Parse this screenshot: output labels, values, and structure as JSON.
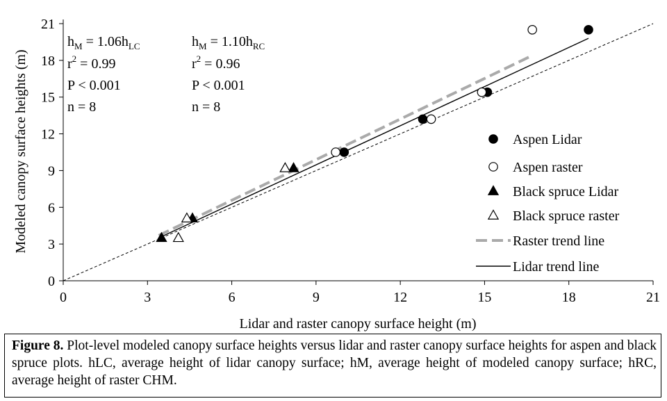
{
  "chart_data": {
    "type": "scatter",
    "xlabel": "Lidar and raster canopy surface height (m)",
    "ylabel": "Modeled canopy surface heights (m)",
    "xlim": [
      0,
      21
    ],
    "ylim": [
      0,
      21
    ],
    "x_ticks": [
      "0",
      "3",
      "6",
      "9",
      "12",
      "15",
      "18",
      "21"
    ],
    "y_ticks": [
      "0",
      "3",
      "6",
      "9",
      "12",
      "15",
      "18",
      "21"
    ],
    "grid": false,
    "legend_position": "bottom-right",
    "series": [
      {
        "name": "Aspen Lidar",
        "marker": "filled-circle",
        "color": "#000000",
        "points": [
          [
            10.0,
            10.5
          ],
          [
            12.8,
            13.2
          ],
          [
            15.1,
            15.4
          ],
          [
            18.7,
            20.5
          ]
        ]
      },
      {
        "name": "Aspen raster",
        "marker": "open-circle",
        "color": "#000000",
        "points": [
          [
            9.7,
            10.5
          ],
          [
            13.1,
            13.2
          ],
          [
            14.9,
            15.4
          ],
          [
            16.7,
            20.5
          ]
        ]
      },
      {
        "name": "Black spruce Lidar",
        "marker": "filled-triangle",
        "color": "#000000",
        "points": [
          [
            3.5,
            3.5
          ],
          [
            4.6,
            5.1
          ],
          [
            8.2,
            9.2
          ]
        ]
      },
      {
        "name": "Black spruce raster",
        "marker": "open-triangle",
        "color": "#000000",
        "points": [
          [
            4.1,
            3.5
          ],
          [
            4.4,
            5.1
          ],
          [
            7.9,
            9.2
          ]
        ]
      }
    ],
    "lines": [
      {
        "name": "Raster trend line",
        "style": "dashed",
        "color": "#aaaaaa",
        "x": [
          3.4,
          16.7
        ],
        "y": [
          3.7,
          18.4
        ]
      },
      {
        "name": "Lidar trend line",
        "style": "solid",
        "color": "#000000",
        "x": [
          3.4,
          18.7
        ],
        "y": [
          3.5,
          19.8
        ]
      },
      {
        "name": "",
        "style": "dotted",
        "color": "#000000",
        "x": [
          0,
          21
        ],
        "y": [
          0,
          21
        ]
      }
    ],
    "annotations": [
      {
        "lines": [
          [
            "h",
            "M",
            " = 1.06h",
            "LC"
          ],
          [
            "r",
            "2",
            " = 0.99",
            ""
          ],
          [
            "P < 0.001",
            "",
            "",
            ""
          ],
          [
            "n = 8",
            "",
            "",
            ""
          ]
        ]
      },
      {
        "lines": [
          [
            "h",
            "M",
            " = 1.10h",
            "RC"
          ],
          [
            "r",
            "2",
            " = 0.96",
            ""
          ],
          [
            "P < 0.001",
            "",
            "",
            ""
          ],
          [
            "n = 8",
            "",
            "",
            ""
          ]
        ]
      }
    ]
  },
  "caption": {
    "label": "Figure 8.",
    "text": " Plot-level modeled canopy surface heights versus lidar and raster canopy surface heights for aspen and black spruce plots. hLC, average height of lidar canopy surface; hM, average height of modeled canopy surface; hRC, average height of raster CHM."
  }
}
